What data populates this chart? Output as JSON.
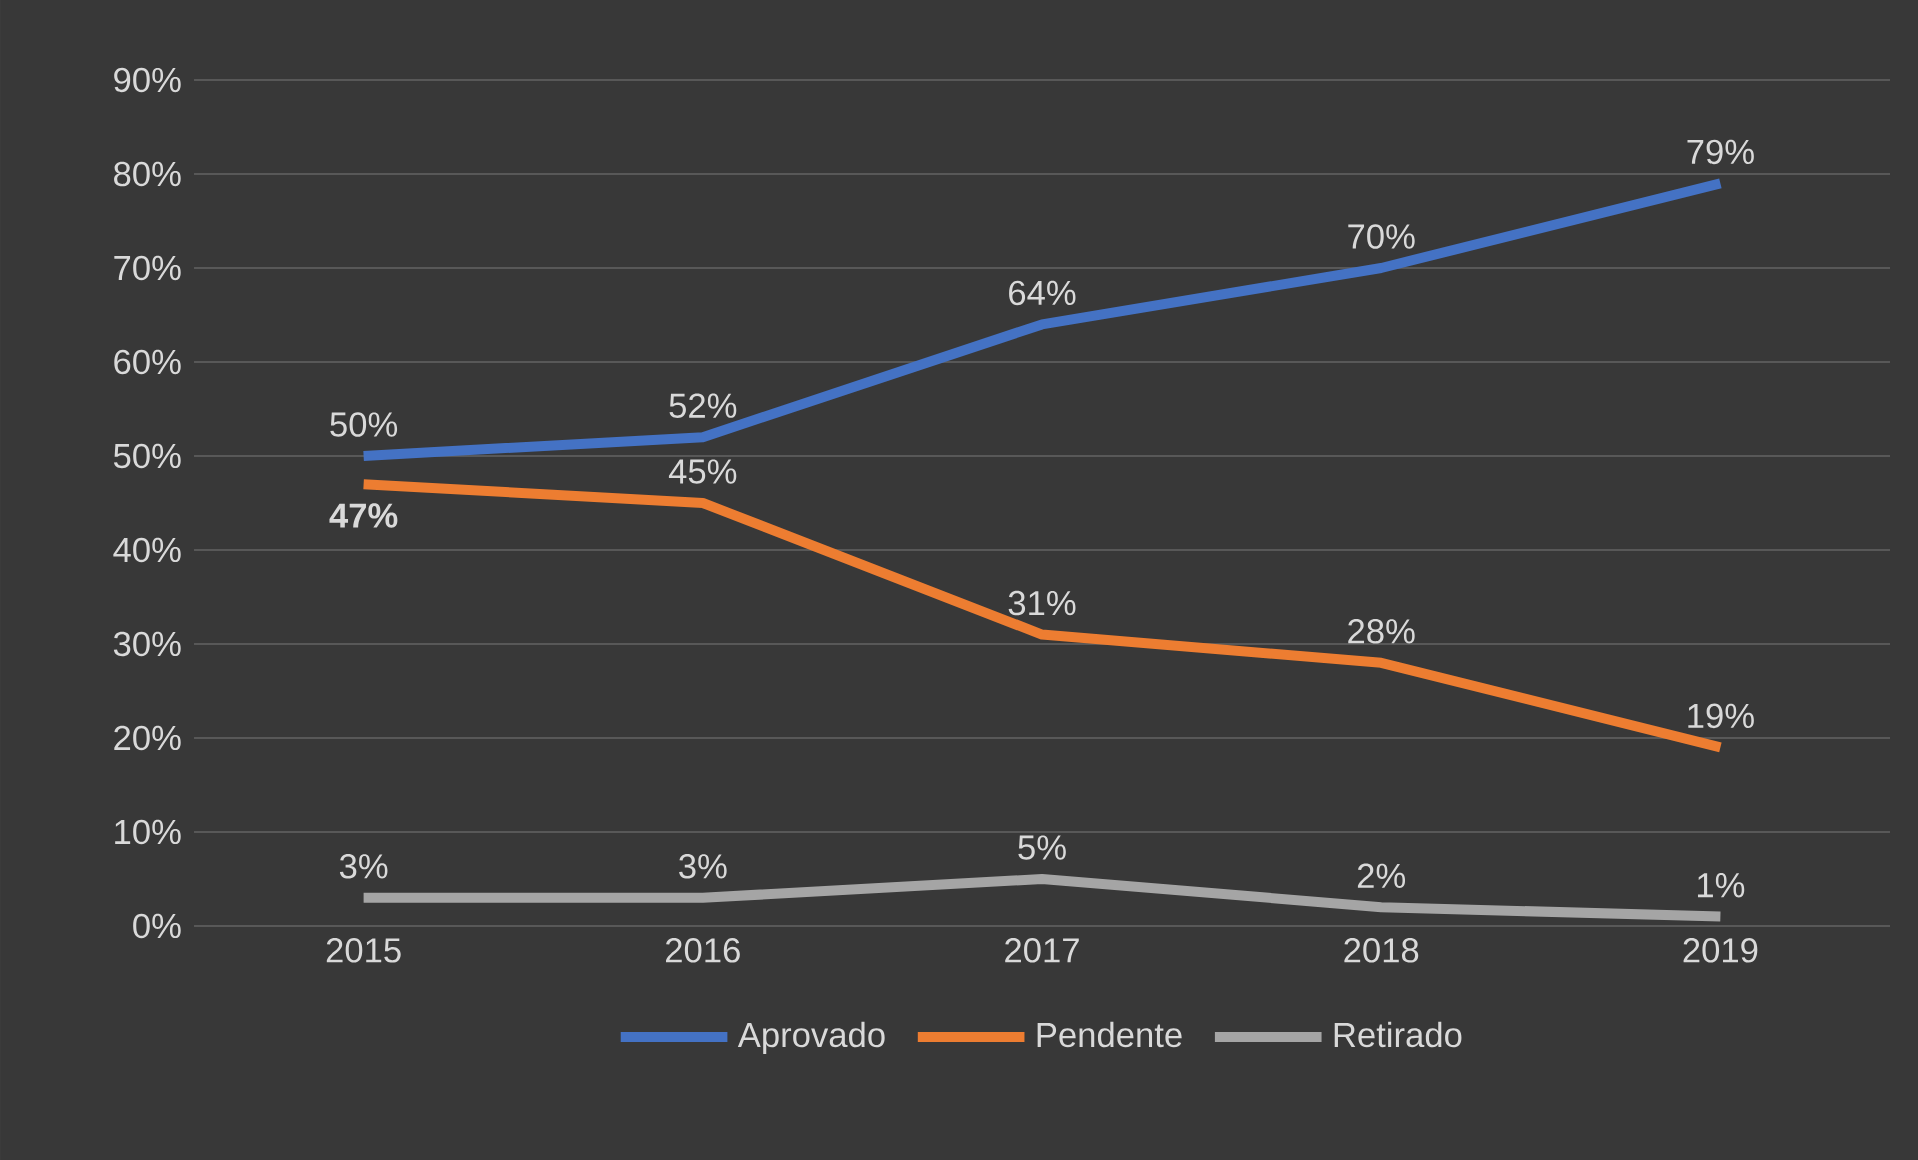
{
  "chart_data": {
    "type": "line",
    "categories": [
      "2015",
      "2016",
      "2017",
      "2018",
      "2019"
    ],
    "series": [
      {
        "name": "Aprovado",
        "color": "#4472c4",
        "values": [
          50,
          52,
          64,
          70,
          79
        ],
        "value_labels": [
          "50%",
          "52%",
          "64%",
          "70%",
          "79%"
        ]
      },
      {
        "name": "Pendente",
        "color": "#ed7d31",
        "values": [
          47,
          45,
          31,
          28,
          19
        ],
        "value_labels": [
          "**47%**",
          "45%",
          "31%",
          "28%",
          "19%"
        ]
      },
      {
        "name": "Retirado",
        "color": "#a5a5a5",
        "values": [
          3,
          3,
          5,
          2,
          1
        ],
        "value_labels": [
          "3%",
          "3%",
          "5%",
          "2%",
          "1%"
        ]
      }
    ],
    "ylim": [
      0,
      90
    ],
    "yticks": [
      {
        "value": 0,
        "label": "0%"
      },
      {
        "value": 10,
        "label": "10%"
      },
      {
        "value": 20,
        "label": "20%"
      },
      {
        "value": 30,
        "label": "30%"
      },
      {
        "value": 40,
        "label": "40%"
      },
      {
        "value": 50,
        "label": "50%"
      },
      {
        "value": 60,
        "label": "60%"
      },
      {
        "value": 70,
        "label": "70%"
      },
      {
        "value": 80,
        "label": "80%"
      },
      {
        "value": 90,
        "label": "90%"
      }
    ],
    "grid": "y",
    "legend": "bottom",
    "marker": "none",
    "line_style": "solid"
  }
}
